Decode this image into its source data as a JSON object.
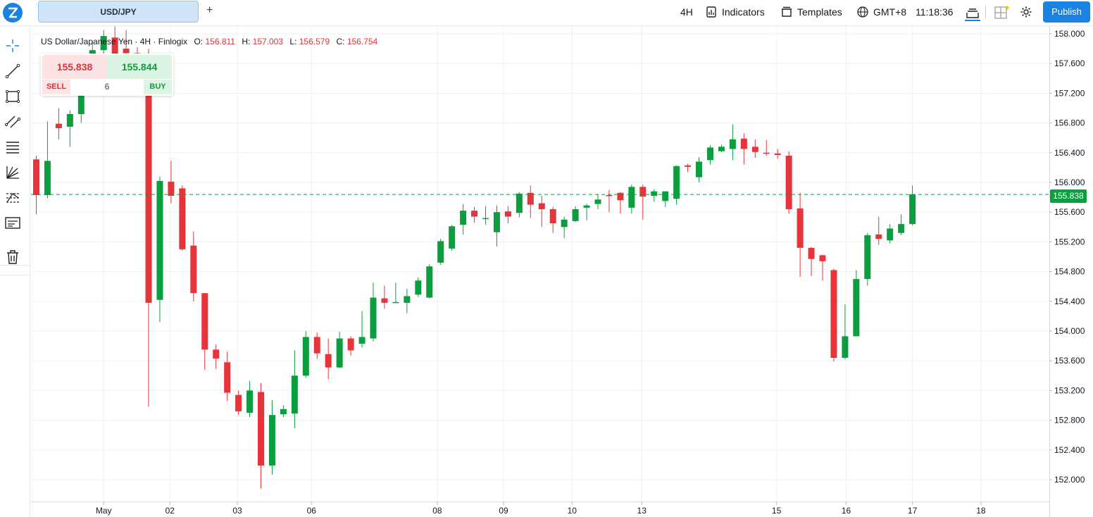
{
  "topbar": {
    "logo": "finlogix-logo",
    "symbol_tab": "USD/JPY",
    "add_tab": "+",
    "interval": "4H",
    "indicators": "Indicators",
    "templates": "Templates",
    "timezone": "GMT+8",
    "clock": "11:18:36",
    "publish": "Publish"
  },
  "lefttools": [
    "crosshair-icon",
    "trendline-icon",
    "rectangle-icon",
    "channel-icon",
    "fib-levels-icon",
    "fan-icon",
    "pattern-icon",
    "text-note-icon",
    "trash-icon"
  ],
  "legend": {
    "title": "US Dollar/Japanese Yen · 4H · Finlogix",
    "o_label": "O:",
    "o": "156.811",
    "h_label": "H:",
    "h": "157.003",
    "l_label": "L:",
    "l": "156.579",
    "c_label": "C:",
    "c": "156.754"
  },
  "trade": {
    "sell_price": "155.838",
    "buy_price": "155.844",
    "sell_label": "SELL",
    "buy_label": "BUY",
    "quantity": "6"
  },
  "current_price": "155.838",
  "colors": {
    "up": "#0a9e3f",
    "down": "#e5343a",
    "accent": "#1a82e2"
  },
  "chart_data": {
    "type": "candlestick",
    "symbol": "USD/JPY",
    "interval": "4H",
    "ylim": [
      151.8,
      158.1
    ],
    "y_ticks": [
      "158.000",
      "157.600",
      "157.200",
      "156.800",
      "156.400",
      "156.000",
      "155.600",
      "155.200",
      "154.800",
      "154.400",
      "154.000",
      "153.600",
      "153.200",
      "152.800",
      "152.400",
      "152.000"
    ],
    "x_ticks": [
      "May",
      "02",
      "03",
      "06",
      "08",
      "09",
      "10",
      "13",
      "15",
      "16",
      "17",
      "18"
    ],
    "x_tick_slots": [
      6.0,
      11.9,
      17.9,
      24.5,
      35.7,
      41.6,
      47.7,
      53.9,
      65.9,
      72.1,
      78.0,
      84.1
    ],
    "last_price": 155.838,
    "candles": [
      [
        156.31,
        156.36,
        155.57,
        155.83
      ],
      [
        155.83,
        156.82,
        155.79,
        156.29
      ],
      [
        156.79,
        157.0,
        156.58,
        156.73
      ],
      [
        156.75,
        156.97,
        156.48,
        156.92
      ],
      [
        156.92,
        157.58,
        156.8,
        157.52
      ],
      [
        157.52,
        157.9,
        157.48,
        157.78
      ],
      [
        157.78,
        158.05,
        157.72,
        157.97
      ],
      [
        157.95,
        158.1,
        157.65,
        157.7
      ],
      [
        157.8,
        158.05,
        157.6,
        157.74
      ],
      [
        157.74,
        157.82,
        157.52,
        157.62
      ],
      [
        157.66,
        157.8,
        152.98,
        154.38
      ],
      [
        154.42,
        156.08,
        154.12,
        156.02
      ],
      [
        156.01,
        156.29,
        155.72,
        155.82
      ],
      [
        155.92,
        155.96,
        155.08,
        155.1
      ],
      [
        155.15,
        155.34,
        154.4,
        154.51
      ],
      [
        154.51,
        154.51,
        153.48,
        153.75
      ],
      [
        153.75,
        153.82,
        153.49,
        153.63
      ],
      [
        153.58,
        153.72,
        153.06,
        153.17
      ],
      [
        153.14,
        153.2,
        152.87,
        152.92
      ],
      [
        152.9,
        153.33,
        152.84,
        153.2
      ],
      [
        153.18,
        153.3,
        151.88,
        152.19
      ],
      [
        152.19,
        153.07,
        152.07,
        152.87
      ],
      [
        152.88,
        153.0,
        152.84,
        152.95
      ],
      [
        152.89,
        153.74,
        152.69,
        153.4
      ],
      [
        153.4,
        154.0,
        153.37,
        153.92
      ],
      [
        153.92,
        153.98,
        153.63,
        153.7
      ],
      [
        153.69,
        153.9,
        153.35,
        153.51
      ],
      [
        153.51,
        153.99,
        153.5,
        153.9
      ],
      [
        153.9,
        153.93,
        153.67,
        153.74
      ],
      [
        153.83,
        154.27,
        153.78,
        153.92
      ],
      [
        153.9,
        154.65,
        153.86,
        154.45
      ],
      [
        154.44,
        154.61,
        154.3,
        154.38
      ],
      [
        154.38,
        154.65,
        154.38,
        154.39
      ],
      [
        154.38,
        154.57,
        154.24,
        154.47
      ],
      [
        154.49,
        154.72,
        154.46,
        154.68
      ],
      [
        154.45,
        154.9,
        154.44,
        154.87
      ],
      [
        154.92,
        155.24,
        154.89,
        155.21
      ],
      [
        155.11,
        155.43,
        155.08,
        155.41
      ],
      [
        155.43,
        155.71,
        155.3,
        155.62
      ],
      [
        155.62,
        155.67,
        155.46,
        155.54
      ],
      [
        155.52,
        155.68,
        155.43,
        155.52
      ],
      [
        155.33,
        155.69,
        155.14,
        155.6
      ],
      [
        155.61,
        155.68,
        155.45,
        155.54
      ],
      [
        155.59,
        155.87,
        155.53,
        155.85
      ],
      [
        155.86,
        155.96,
        155.52,
        155.7
      ],
      [
        155.72,
        155.82,
        155.4,
        155.64
      ],
      [
        155.64,
        155.67,
        155.32,
        155.45
      ],
      [
        155.4,
        155.54,
        155.25,
        155.5
      ],
      [
        155.48,
        155.68,
        155.47,
        155.64
      ],
      [
        155.66,
        155.71,
        155.49,
        155.69
      ],
      [
        155.71,
        155.84,
        155.64,
        155.77
      ],
      [
        155.83,
        155.9,
        155.6,
        155.82
      ],
      [
        155.86,
        155.87,
        155.58,
        155.76
      ],
      [
        155.66,
        155.97,
        155.58,
        155.94
      ],
      [
        155.94,
        155.97,
        155.5,
        155.81
      ],
      [
        155.82,
        155.91,
        155.74,
        155.88
      ],
      [
        155.75,
        155.88,
        155.67,
        155.88
      ],
      [
        155.78,
        156.23,
        155.7,
        156.22
      ],
      [
        156.23,
        156.25,
        156.14,
        156.21
      ],
      [
        156.07,
        156.34,
        156.0,
        156.28
      ],
      [
        156.3,
        156.5,
        156.24,
        156.47
      ],
      [
        156.42,
        156.51,
        156.41,
        156.48
      ],
      [
        156.45,
        156.78,
        156.3,
        156.58
      ],
      [
        156.59,
        156.66,
        156.24,
        156.45
      ],
      [
        156.48,
        156.58,
        156.33,
        156.41
      ],
      [
        156.4,
        156.57,
        156.36,
        156.39
      ],
      [
        156.39,
        156.45,
        156.32,
        156.37
      ],
      [
        156.36,
        156.42,
        155.58,
        155.64
      ],
      [
        155.65,
        155.86,
        154.73,
        155.12
      ],
      [
        155.12,
        155.13,
        154.74,
        154.97
      ],
      [
        155.02,
        155.03,
        154.68,
        154.94
      ],
      [
        154.82,
        154.84,
        153.59,
        153.64
      ],
      [
        153.64,
        154.36,
        153.62,
        153.93
      ],
      [
        153.93,
        154.82,
        153.93,
        154.7
      ],
      [
        154.7,
        155.32,
        154.61,
        155.29
      ],
      [
        155.3,
        155.54,
        155.16,
        155.24
      ],
      [
        155.22,
        155.44,
        155.18,
        155.38
      ],
      [
        155.32,
        155.57,
        155.29,
        155.44
      ],
      [
        155.44,
        155.96,
        155.42,
        155.84
      ]
    ]
  }
}
